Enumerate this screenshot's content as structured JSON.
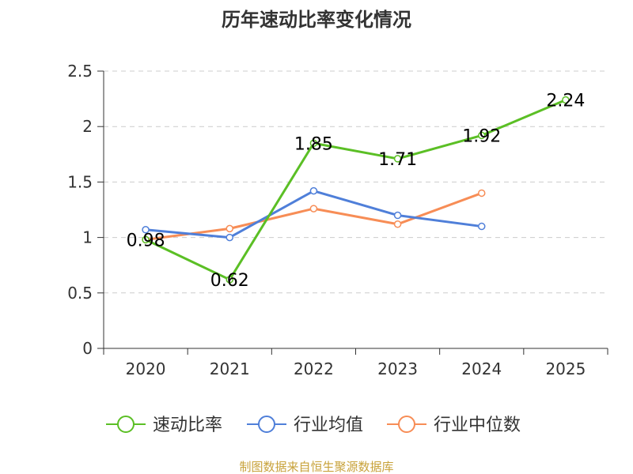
{
  "chart_data": {
    "type": "line",
    "title": "历年速动比率变化情况",
    "categories": [
      "2020",
      "2021",
      "2022",
      "2023",
      "2024",
      "2025"
    ],
    "ylim": [
      0,
      2.5
    ],
    "yticks": [
      "0",
      "0.5",
      "1",
      "1.5",
      "2",
      "2.5"
    ],
    "ytick_values": [
      0,
      0.5,
      1,
      1.5,
      2,
      2.5
    ],
    "grid": true,
    "legend_position": "bottom",
    "series": [
      {
        "name": "速动比率",
        "color": "#5bbf25",
        "values": [
          0.98,
          0.62,
          1.85,
          1.71,
          1.92,
          2.24
        ],
        "labels": [
          "0.98",
          "0.62",
          "1.85",
          "1.71",
          "1.92",
          "2.24"
        ]
      },
      {
        "name": "行业均值",
        "color": "#4f7fd9",
        "values": [
          1.07,
          1.0,
          1.42,
          1.2,
          1.1,
          null
        ]
      },
      {
        "name": "行业中位数",
        "color": "#f78d56",
        "values": [
          0.98,
          1.08,
          1.26,
          1.12,
          1.4,
          null
        ]
      }
    ]
  },
  "source": "制图数据来自恒生聚源数据库"
}
